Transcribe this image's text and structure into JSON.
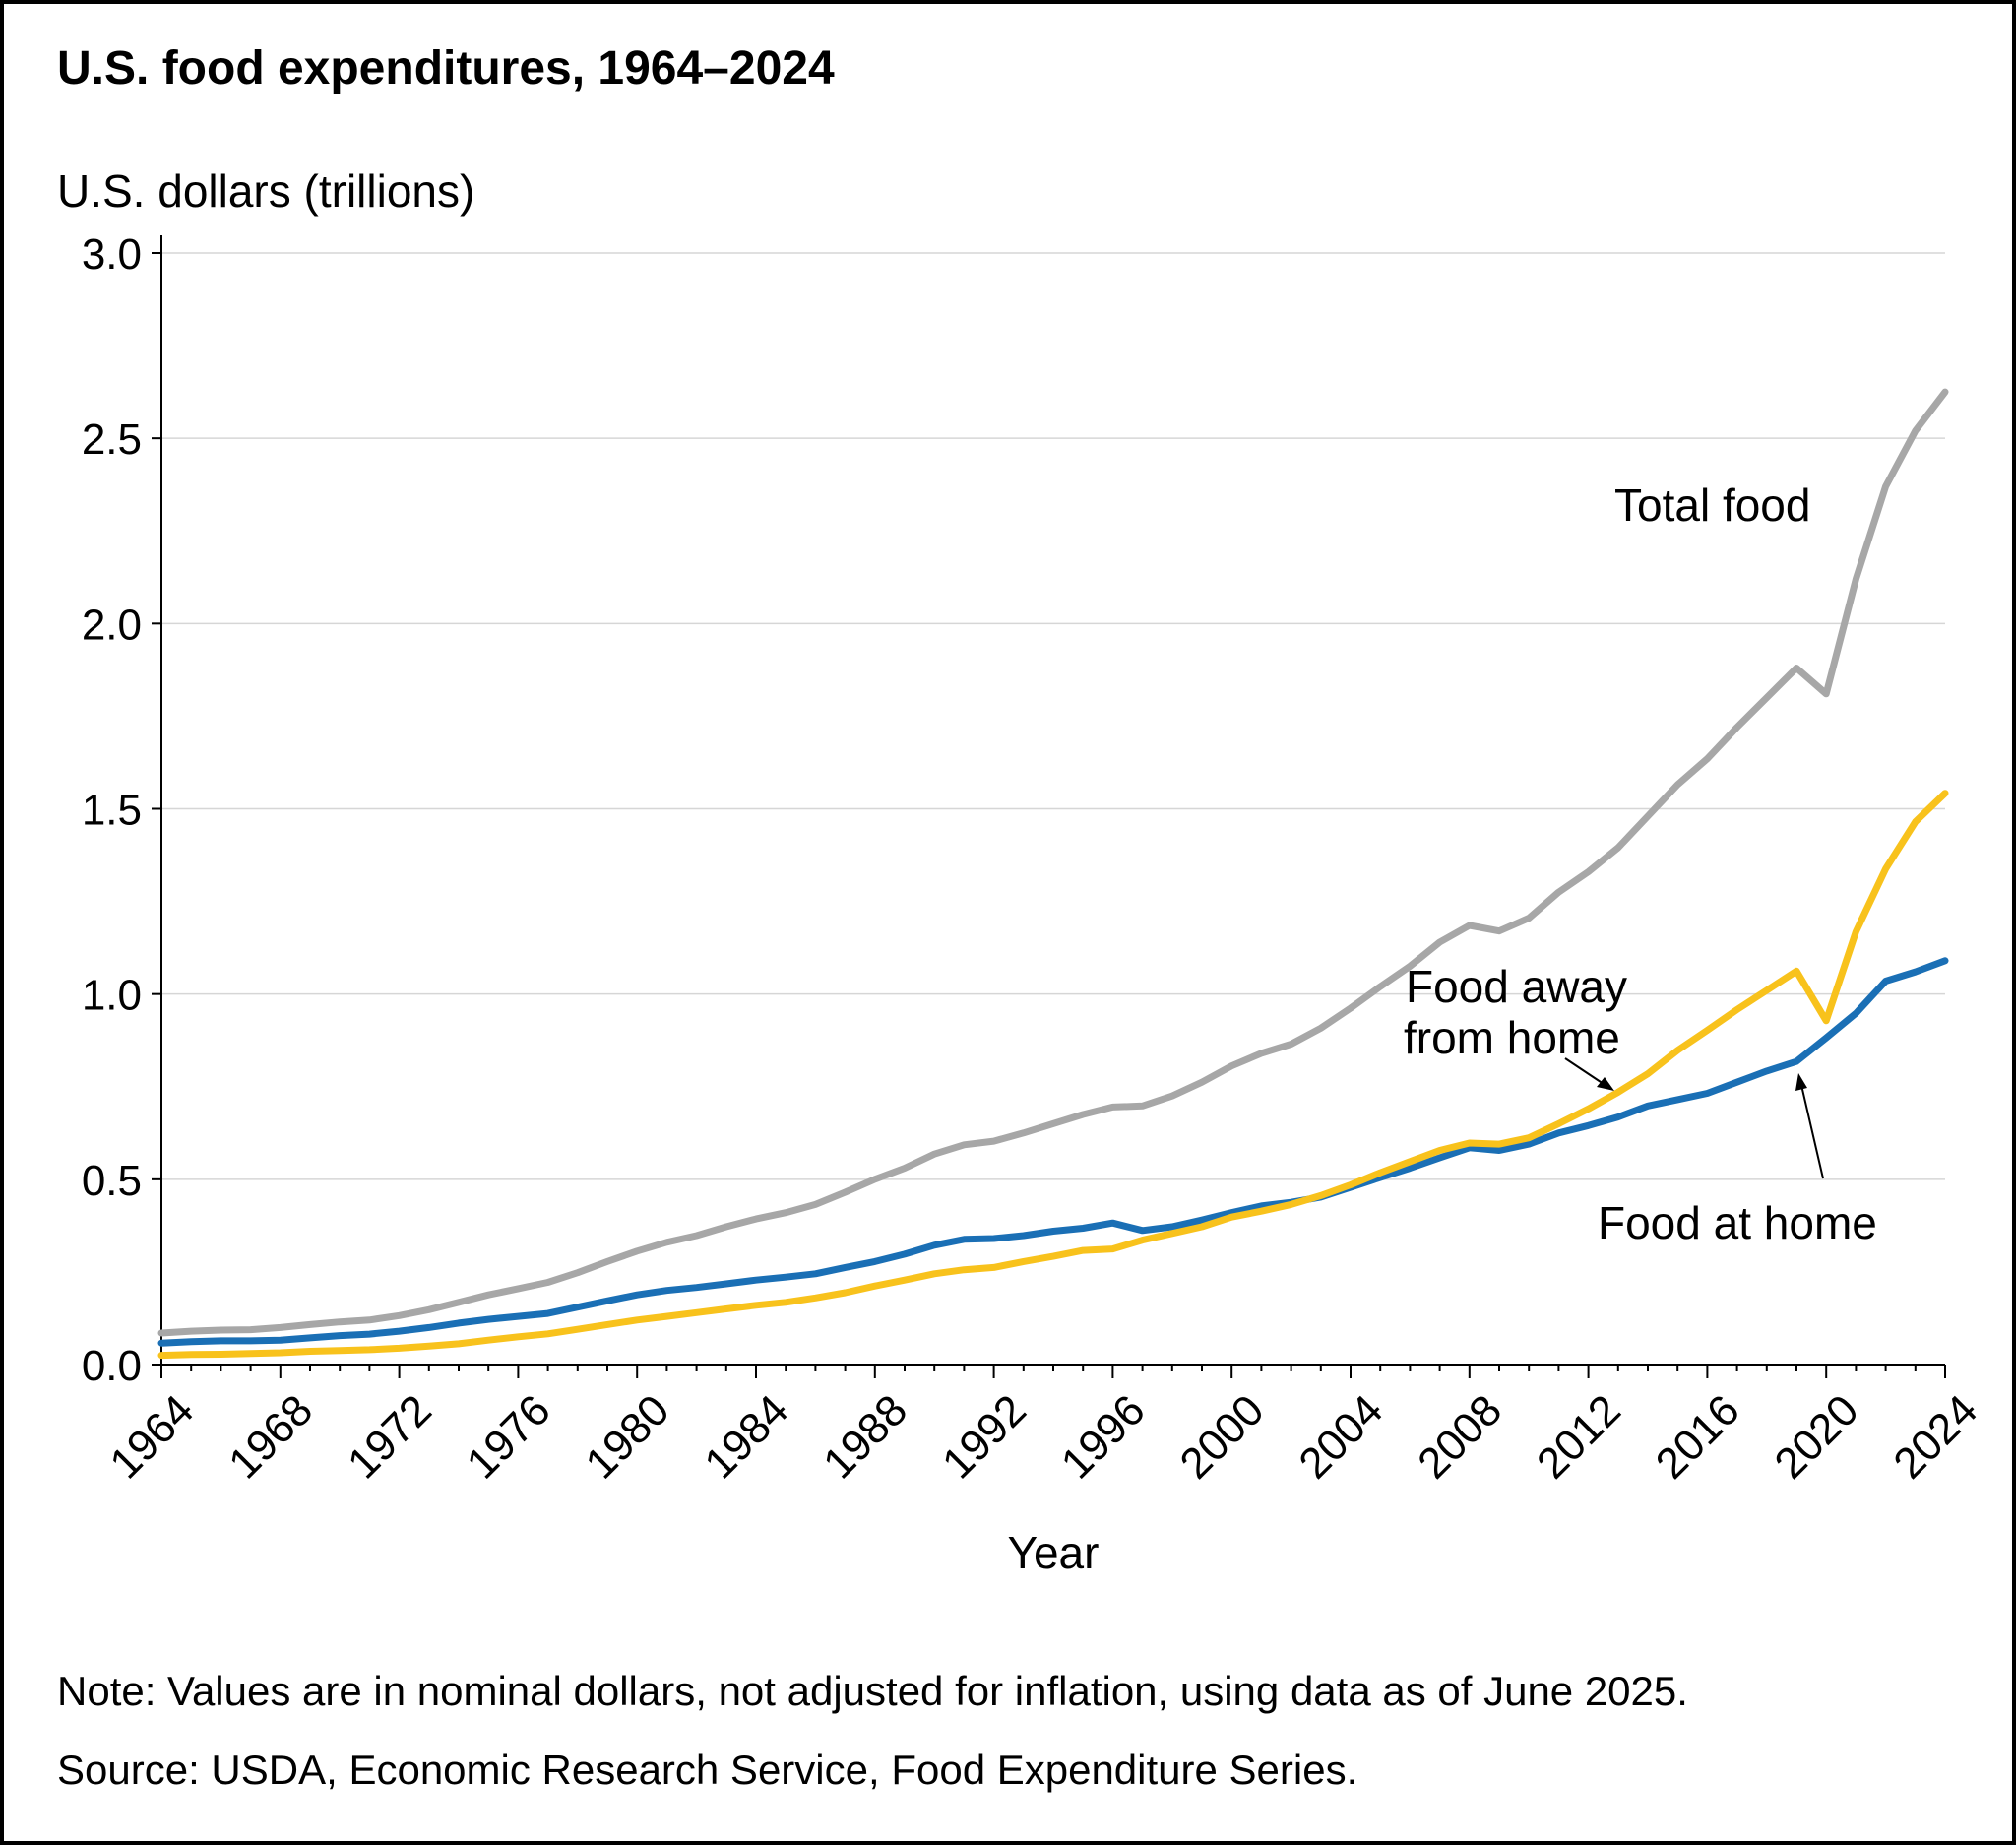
{
  "title": "U.S. food expenditures, 1964–2024",
  "note": "Note: Values are in nominal dollars, not adjusted for inflation, using data as of June 2025.",
  "source": "Source: USDA, Economic Research Service, Food Expenditure Series.",
  "chart_data": {
    "type": "line",
    "title": "U.S. food expenditures, 1964–2024",
    "xlabel": "Year",
    "ylabel": "U.S. dollars (trillions)",
    "xlim": [
      1964,
      2024
    ],
    "ylim": [
      0,
      3.0
    ],
    "y_ticks": [
      "0.0",
      "0.5",
      "1.0",
      "1.5",
      "2.0",
      "2.5",
      "3.0"
    ],
    "x_ticks": [
      "1964",
      "1968",
      "1972",
      "1976",
      "1980",
      "1984",
      "1988",
      "1992",
      "1996",
      "2000",
      "2004",
      "2008",
      "2012",
      "2016",
      "2020",
      "2024"
    ],
    "grid": true,
    "x": [
      1964,
      1965,
      1966,
      1967,
      1968,
      1969,
      1970,
      1971,
      1972,
      1973,
      1974,
      1975,
      1976,
      1977,
      1978,
      1979,
      1980,
      1981,
      1982,
      1983,
      1984,
      1985,
      1986,
      1987,
      1988,
      1989,
      1990,
      1991,
      1992,
      1993,
      1994,
      1995,
      1996,
      1997,
      1998,
      1999,
      2000,
      2001,
      2002,
      2003,
      2004,
      2005,
      2006,
      2007,
      2008,
      2009,
      2010,
      2011,
      2012,
      2013,
      2014,
      2015,
      2016,
      2017,
      2018,
      2019,
      2020,
      2021,
      2022,
      2023,
      2024
    ],
    "series": [
      {
        "name": "Total food",
        "color": "#a7a7a7",
        "values": [
          0.085,
          0.09,
          0.093,
          0.094,
          0.1,
          0.108,
          0.115,
          0.12,
          0.132,
          0.148,
          0.168,
          0.188,
          0.205,
          0.222,
          0.248,
          0.278,
          0.306,
          0.33,
          0.348,
          0.372,
          0.393,
          0.41,
          0.432,
          0.465,
          0.5,
          0.53,
          0.568,
          0.593,
          0.603,
          0.625,
          0.65,
          0.675,
          0.695,
          0.698,
          0.725,
          0.762,
          0.806,
          0.84,
          0.865,
          0.908,
          0.962,
          1.02,
          1.075,
          1.14,
          1.185,
          1.17,
          1.205,
          1.275,
          1.33,
          1.395,
          1.48,
          1.565,
          1.635,
          1.72,
          1.8,
          1.88,
          1.81,
          2.12,
          2.37,
          2.52,
          2.625
        ]
      },
      {
        "name": "Food at home",
        "color": "#1a6fb5",
        "values": [
          0.058,
          0.062,
          0.064,
          0.064,
          0.066,
          0.072,
          0.078,
          0.082,
          0.09,
          0.1,
          0.112,
          0.122,
          0.13,
          0.138,
          0.155,
          0.172,
          0.188,
          0.2,
          0.208,
          0.218,
          0.228,
          0.236,
          0.245,
          0.262,
          0.278,
          0.298,
          0.322,
          0.338,
          0.34,
          0.348,
          0.36,
          0.368,
          0.382,
          0.362,
          0.372,
          0.39,
          0.41,
          0.428,
          0.438,
          0.452,
          0.478,
          0.505,
          0.53,
          0.558,
          0.585,
          0.578,
          0.595,
          0.625,
          0.645,
          0.668,
          0.698,
          0.715,
          0.732,
          0.762,
          0.792,
          0.818,
          0.882,
          0.948,
          1.035,
          1.06,
          1.09
        ]
      },
      {
        "name": "Food away from home",
        "color": "#f8c21c",
        "values": [
          0.025,
          0.027,
          0.028,
          0.03,
          0.032,
          0.036,
          0.038,
          0.04,
          0.044,
          0.05,
          0.056,
          0.066,
          0.075,
          0.083,
          0.095,
          0.108,
          0.12,
          0.13,
          0.14,
          0.15,
          0.16,
          0.168,
          0.18,
          0.194,
          0.212,
          0.228,
          0.245,
          0.256,
          0.262,
          0.278,
          0.292,
          0.308,
          0.312,
          0.336,
          0.354,
          0.372,
          0.398,
          0.414,
          0.432,
          0.456,
          0.485,
          0.518,
          0.548,
          0.578,
          0.598,
          0.595,
          0.612,
          0.65,
          0.69,
          0.735,
          0.785,
          0.848,
          0.902,
          0.958,
          1.01,
          1.062,
          0.928,
          1.168,
          1.338,
          1.465,
          1.542
        ]
      }
    ],
    "annotations": {
      "total_food": "Total food",
      "food_away_line1": "Food away",
      "food_away_line2": "from home",
      "food_at_home": "Food at home"
    }
  }
}
